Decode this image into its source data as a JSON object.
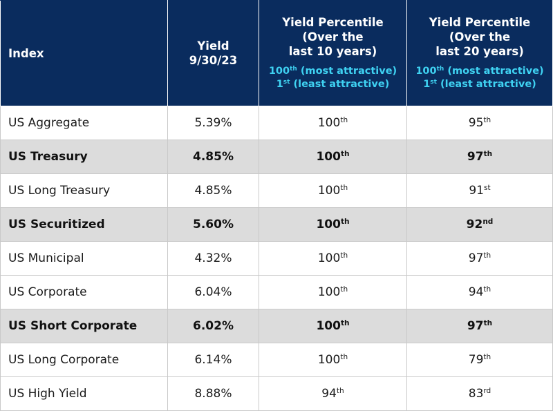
{
  "header": {
    "index": "Index",
    "yield_lines": [
      "Yield",
      "9/30/23"
    ],
    "pct10_lines": [
      "Yield Percentile",
      "(Over the",
      "last 10 years)"
    ],
    "pct20_lines": [
      "Yield Percentile",
      "(Over the",
      "last 20 years)"
    ],
    "legend_most": {
      "num": "100",
      "sup": "th",
      "text": " (most attractive)"
    },
    "legend_least": {
      "num": "1",
      "sup": "st",
      "text": " (least attractive)"
    }
  },
  "rows": [
    {
      "name": "US Aggregate",
      "yield": "5.39%",
      "p10": "100",
      "p10_sup": "th",
      "p20": "95",
      "p20_sup": "th",
      "bold": false
    },
    {
      "name": "US Treasury",
      "yield": "4.85%",
      "p10": "100",
      "p10_sup": "th",
      "p20": "97",
      "p20_sup": "th",
      "bold": true
    },
    {
      "name": "US Long Treasury",
      "yield": "4.85%",
      "p10": "100",
      "p10_sup": "th",
      "p20": "91",
      "p20_sup": "st",
      "bold": false
    },
    {
      "name": "US Securitized",
      "yield": "5.60%",
      "p10": "100",
      "p10_sup": "th",
      "p20": "92",
      "p20_sup": "nd",
      "bold": true
    },
    {
      "name": "US Municipal",
      "yield": "4.32%",
      "p10": "100",
      "p10_sup": "th",
      "p20": "97",
      "p20_sup": "th",
      "bold": false
    },
    {
      "name": "US Corporate",
      "yield": "6.04%",
      "p10": "100",
      "p10_sup": "th",
      "p20": "94",
      "p20_sup": "th",
      "bold": false
    },
    {
      "name": "US Short Corporate",
      "yield": "6.02%",
      "p10": "100",
      "p10_sup": "th",
      "p20": "97",
      "p20_sup": "th",
      "bold": true
    },
    {
      "name": "US Long Corporate",
      "yield": "6.14%",
      "p10": "100",
      "p10_sup": "th",
      "p20": "79",
      "p20_sup": "th",
      "bold": false
    },
    {
      "name": "US High Yield",
      "yield": "8.88%",
      "p10": "94",
      "p10_sup": "th",
      "p20": "83",
      "p20_sup": "rd",
      "bold": false
    }
  ],
  "colors": {
    "header_bg": "#0a2c5e",
    "header_text": "#ffffff",
    "legend_text": "#3fd2f2",
    "highlight_row_bg": "#dcdcdc"
  }
}
